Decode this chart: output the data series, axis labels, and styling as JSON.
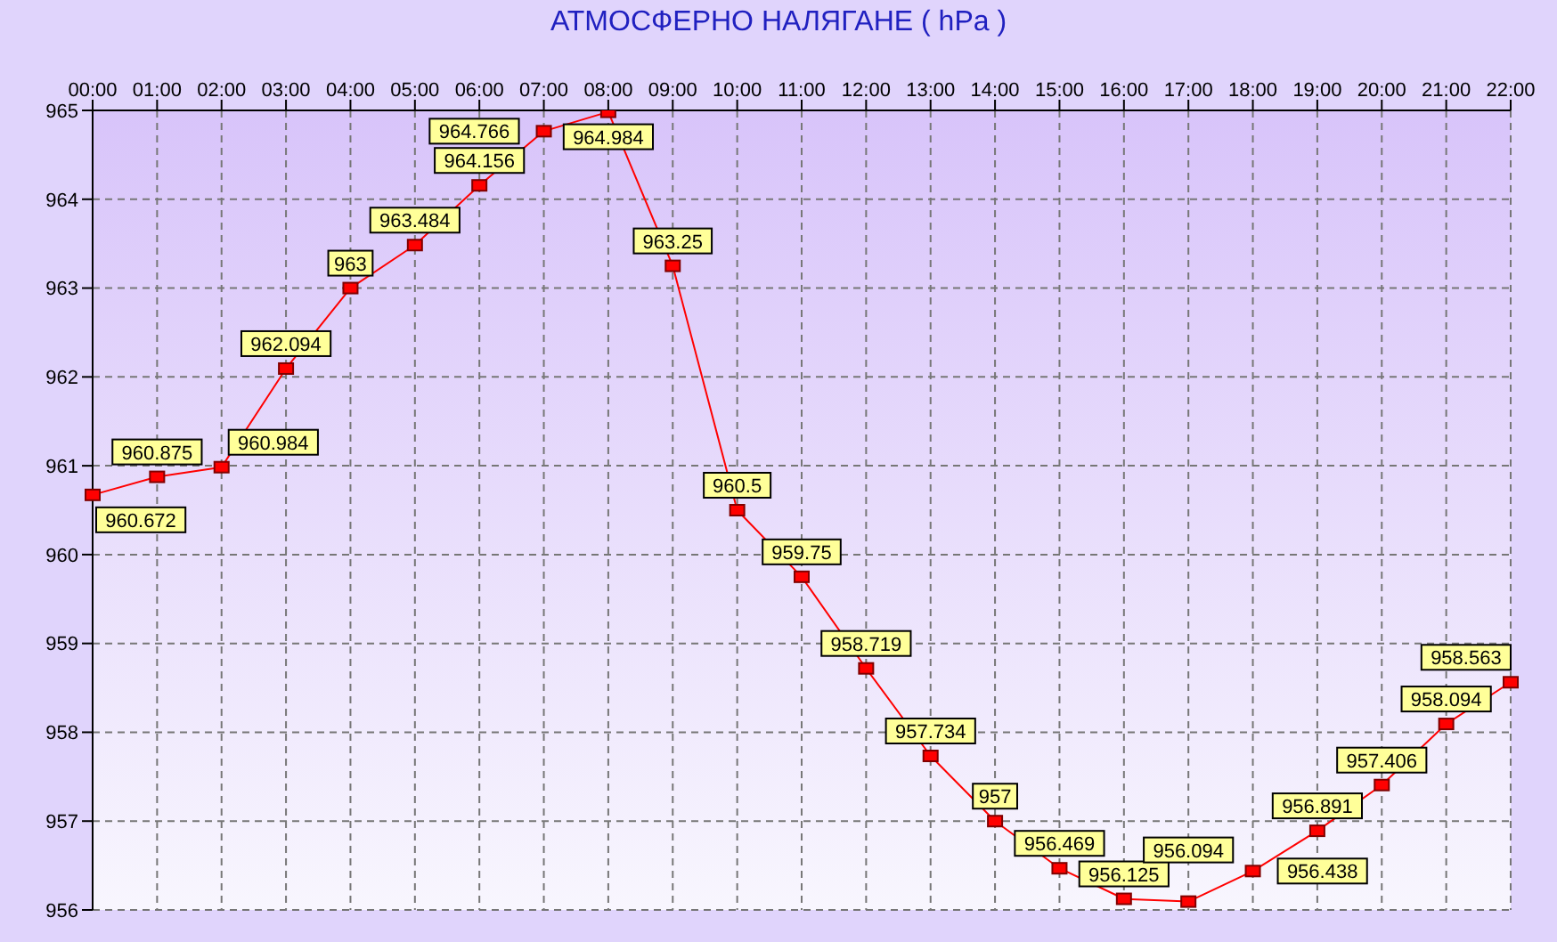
{
  "chart_data": {
    "type": "line",
    "title": "АТМОСФЕРНО НАЛЯГАНЕ  ( hPa )",
    "categories": [
      "00:00",
      "01:00",
      "02:00",
      "03:00",
      "04:00",
      "05:00",
      "06:00",
      "07:00",
      "08:00",
      "09:00",
      "10:00",
      "11:00",
      "12:00",
      "13:00",
      "14:00",
      "15:00",
      "16:00",
      "17:00",
      "18:00",
      "19:00",
      "20:00",
      "21:00",
      "22:00"
    ],
    "series": [
      {
        "color": "#ff0000",
        "values": [
          960.672,
          960.875,
          960.984,
          962.094,
          963,
          963.484,
          964.156,
          964.766,
          964.984,
          963.25,
          960.5,
          959.75,
          958.719,
          957.734,
          957,
          956.469,
          956.125,
          956.094,
          956.438,
          956.891,
          957.406,
          958.094,
          958.563
        ]
      }
    ],
    "ylim": [
      956,
      965
    ],
    "yticks": [
      956,
      957,
      958,
      959,
      960,
      961,
      962,
      963,
      964,
      965
    ],
    "grid": true,
    "marker": "square",
    "data_labels": true,
    "legend": false
  }
}
